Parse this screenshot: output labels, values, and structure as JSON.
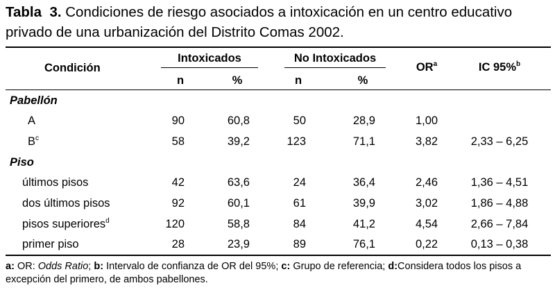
{
  "caption": {
    "label": "Tabla",
    "number": "3.",
    "text": "Condiciones de riesgo asociados a intoxicación en un centro educativo privado de una  urbanización del Distrito Comas 2002."
  },
  "header": {
    "condicion": "Condición",
    "intoxicados": "Intoxicados",
    "no_intoxicados": "No Intoxicados",
    "or": "OR",
    "or_sup": "a",
    "ic": "IC 95%",
    "ic_sup": "b",
    "n": "n",
    "pct": "%"
  },
  "sections": [
    {
      "title": "Pabellón",
      "rows": [
        {
          "label": "A",
          "sup": "",
          "n1": "90",
          "p1": "60,8",
          "n2": "50",
          "p2": "28,9",
          "or": "1,00",
          "ic": ""
        },
        {
          "label": "B",
          "sup": "c",
          "n1": "58",
          "p1": "39,2",
          "n2": "123",
          "p2": "71,1",
          "or": "3,82",
          "ic": "2,33 – 6,25"
        }
      ]
    },
    {
      "title": "Piso",
      "rows": [
        {
          "label": "últimos pisos",
          "sup": "",
          "n1": "42",
          "p1": "63,6",
          "n2": "24",
          "p2": "36,4",
          "or": "2,46",
          "ic": "1,36 – 4,51"
        },
        {
          "label": "dos últimos pisos",
          "sup": "",
          "n1": "92",
          "p1": "60,1",
          "n2": "61",
          "p2": "39,9",
          "or": "3,02",
          "ic": "1,86 – 4,88"
        },
        {
          "label": "pisos superiores",
          "sup": "d",
          "n1": "120",
          "p1": "58,8",
          "n2": "84",
          "p2": "41,2",
          "or": "4,54",
          "ic": "2,66 – 7,84"
        },
        {
          "label": "primer piso",
          "sup": "",
          "n1": "28",
          "p1": "23,9",
          "n2": "89",
          "p2": "76,1",
          "or": "0,22",
          "ic": "0,13 – 0,38"
        }
      ]
    }
  ],
  "footnote": {
    "a_key": "a:",
    "a_pre": "OR: ",
    "a_term": "Odds Ratio",
    "a_end": ";",
    "b_key": "b:",
    "b_text": "Intervalo de confianza de OR del 95%;",
    "c_key": "c:",
    "c_text": "Grupo de referencia;",
    "d_key": "d:",
    "d_text": "Considera todos los pisos a excepción del primero, de ambos pabellones."
  }
}
